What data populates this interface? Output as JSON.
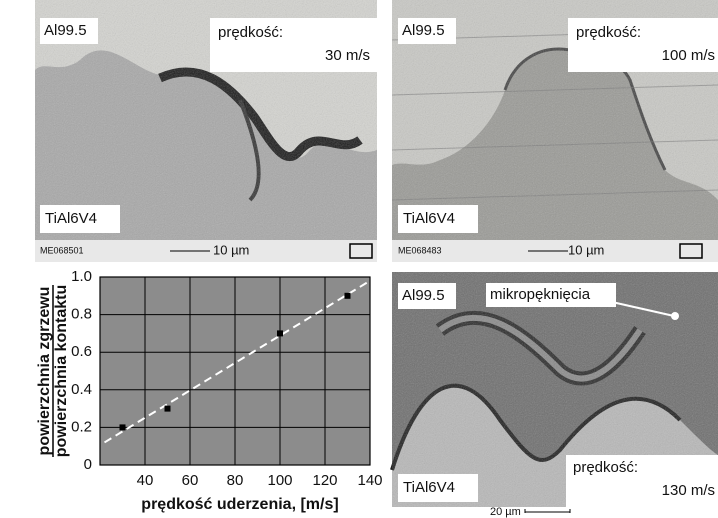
{
  "panels": [
    {
      "material_top": "Al99.5",
      "speed_label": "prędkość:",
      "speed": "30 m/s",
      "material_bottom": "TiAl6V4",
      "sample_id": "ME068501",
      "scale": "10 µm"
    },
    {
      "material_top": "Al99.5",
      "speed_label": "prędkość:",
      "speed": "100 m/s",
      "material_bottom": "TiAl6V4",
      "sample_id": "ME068483",
      "scale": "10 µm"
    },
    {
      "material_top": "Al99.5",
      "annotation": "mikropęknięcia",
      "speed_label": "prędkość:",
      "speed": "130 m/s",
      "material_bottom": "TiAl6V4",
      "scale": "20 µm"
    }
  ],
  "chart_data": {
    "type": "scatter",
    "x_label": "prędkość uderzenia, [m/s]",
    "y_label_numerator": "powierzchnia zgrzewu",
    "y_label_denominator": "powierzchnia kontaktu",
    "x": [
      30,
      50,
      100,
      130
    ],
    "values": [
      0.2,
      0.3,
      0.7,
      0.9
    ],
    "trendline": {
      "x": [
        22,
        140
      ],
      "values": [
        0.12,
        0.98
      ]
    },
    "xlim": [
      20,
      140
    ],
    "ylim": [
      0,
      1
    ],
    "xticks": [
      40,
      60,
      80,
      100,
      120,
      140
    ],
    "yticks": [
      0,
      0.2,
      0.4,
      0.6,
      0.8,
      {
        "value": 1,
        "label": "1.0"
      }
    ],
    "grid": true,
    "color": "#000000",
    "background": "#8c8c8c"
  }
}
